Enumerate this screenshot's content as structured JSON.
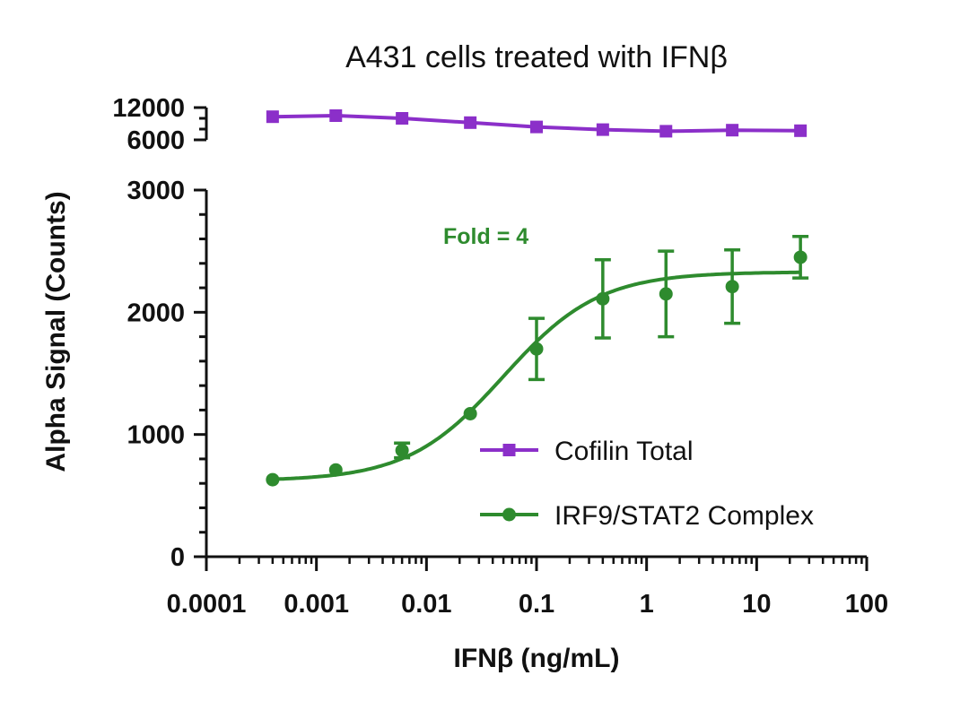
{
  "chart_data": {
    "type": "line",
    "title": "A431 cells treated with IFNβ",
    "xlabel": "IFNβ (ng/mL)",
    "ylabel": "Alpha Signal (Counts)",
    "x_scale": "log",
    "xlim": [
      0.0001,
      100
    ],
    "x_ticks": [
      {
        "value": 0.0001,
        "label": "0.0001"
      },
      {
        "value": 0.001,
        "label": "0.001"
      },
      {
        "value": 0.01,
        "label": "0.01"
      },
      {
        "value": 0.1,
        "label": "0.1"
      },
      {
        "value": 1,
        "label": "1"
      },
      {
        "value": 10,
        "label": "10"
      },
      {
        "value": 100,
        "label": "100"
      }
    ],
    "y_axis_segments": [
      {
        "ylim": [
          0,
          3000
        ],
        "ticks": [
          {
            "value": 0,
            "label": "0"
          },
          {
            "value": 1000,
            "label": "1000"
          },
          {
            "value": 2000,
            "label": "2000"
          },
          {
            "value": 3000,
            "label": "3000"
          }
        ]
      },
      {
        "ylim": [
          6000,
          12000
        ],
        "ticks": [
          {
            "value": 6000,
            "label": "6000"
          },
          {
            "value": 12000,
            "label": "12000"
          }
        ]
      }
    ],
    "grid": false,
    "legend_position": "bottom-right",
    "annotations": [
      {
        "text": "Fold = 4",
        "color": "#2e8b2e"
      }
    ],
    "series": [
      {
        "name": "Cofilin Total",
        "color": "#8b2fc9",
        "marker": "square",
        "x": [
          0.0004,
          0.0015,
          0.006,
          0.025,
          0.1,
          0.4,
          1.5,
          6,
          25
        ],
        "y": [
          10300,
          10500,
          10000,
          9200,
          8400,
          7900,
          7600,
          7800,
          7700
        ]
      },
      {
        "name": "IRF9/STAT2 Complex",
        "color": "#2e8b2e",
        "marker": "circle",
        "x": [
          0.0004,
          0.0015,
          0.006,
          0.025,
          0.1,
          0.4,
          1.5,
          6,
          25
        ],
        "y": [
          630,
          710,
          870,
          1170,
          1700,
          2110,
          2150,
          2210,
          2450
        ],
        "error": [
          0,
          0,
          60,
          0,
          250,
          320,
          350,
          300,
          170
        ],
        "fit": {
          "bottom": 620,
          "top": 2330,
          "ec50": 0.05,
          "hill": 1.0
        }
      }
    ]
  }
}
